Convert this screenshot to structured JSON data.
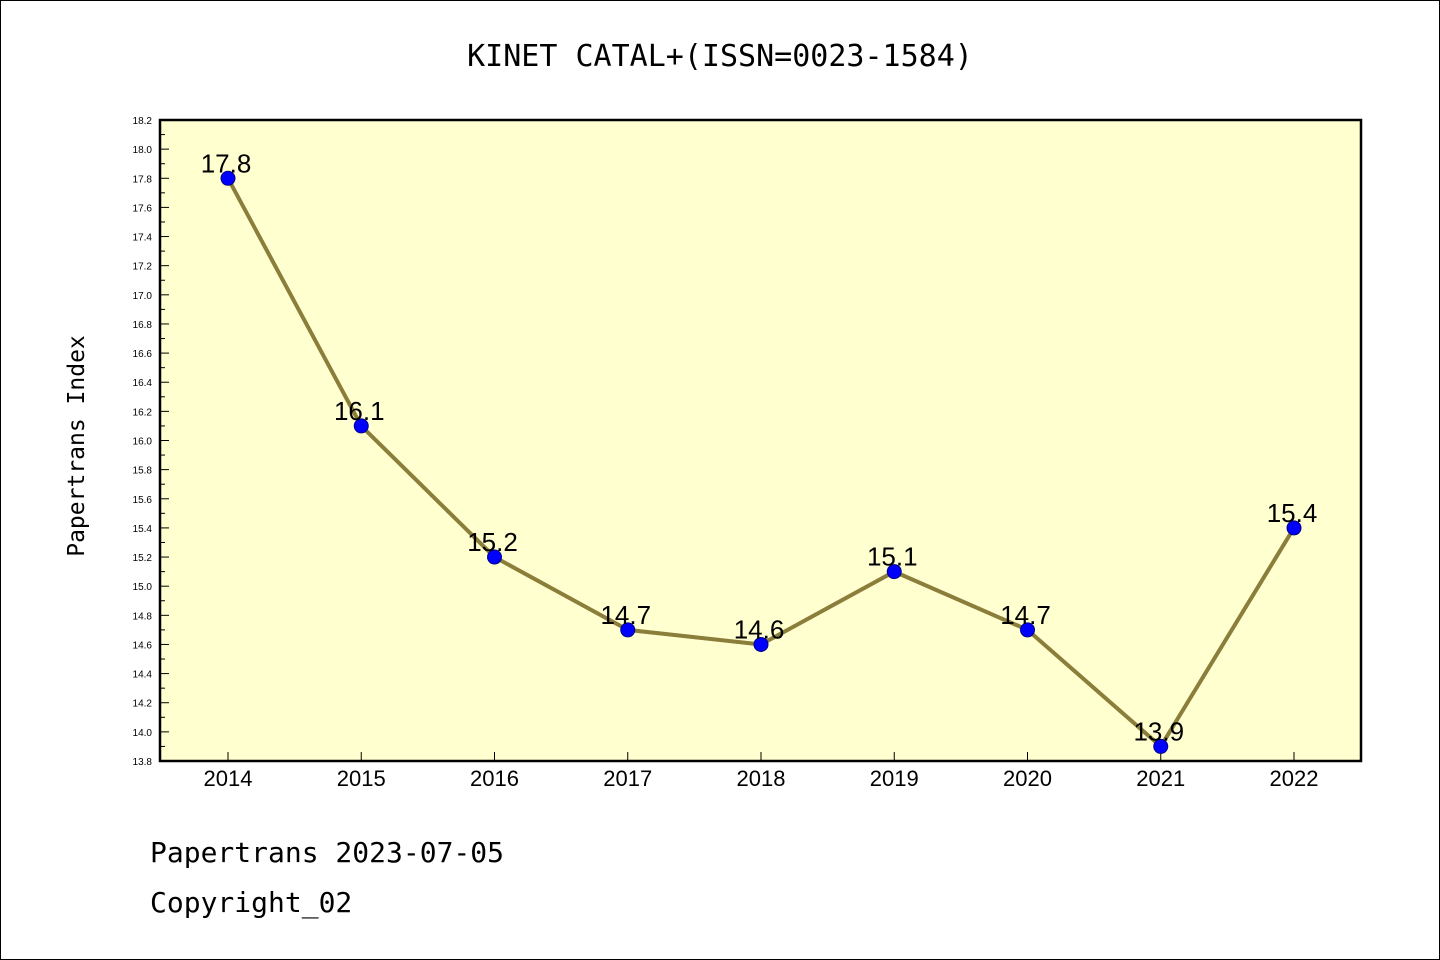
{
  "chart_data": {
    "type": "line",
    "title": "KINET CATAL+(ISSN=0023-1584)",
    "xlabel": "",
    "ylabel": "Papertrans Index",
    "x": [
      2014,
      2015,
      2016,
      2017,
      2018,
      2019,
      2020,
      2021,
      2022
    ],
    "values": [
      17.8,
      16.1,
      15.2,
      14.7,
      14.6,
      15.1,
      14.7,
      13.9,
      15.4
    ],
    "data_labels": [
      "17.8",
      "16.1",
      "15.2",
      "14.7",
      "14.6",
      "15.1",
      "14.7",
      "13.9",
      "15.4"
    ],
    "ylim": [
      13.8,
      18.2
    ],
    "yticks": [
      "13.8",
      "14.0",
      "14.2",
      "14.4",
      "14.6",
      "14.8",
      "15.0",
      "15.2",
      "15.4",
      "15.6",
      "15.8",
      "16.0",
      "16.2",
      "16.4",
      "16.6",
      "16.8",
      "17.0",
      "17.2",
      "17.4",
      "17.6",
      "17.8",
      "18.0",
      "18.2"
    ],
    "grid": false,
    "colors": {
      "plot_bg": "#ffffd0",
      "line": "#8b7d3a",
      "marker": "#0000ff"
    }
  },
  "footer": {
    "line1": "Papertrans 2023-07-05",
    "line2": "Copyright_02"
  }
}
